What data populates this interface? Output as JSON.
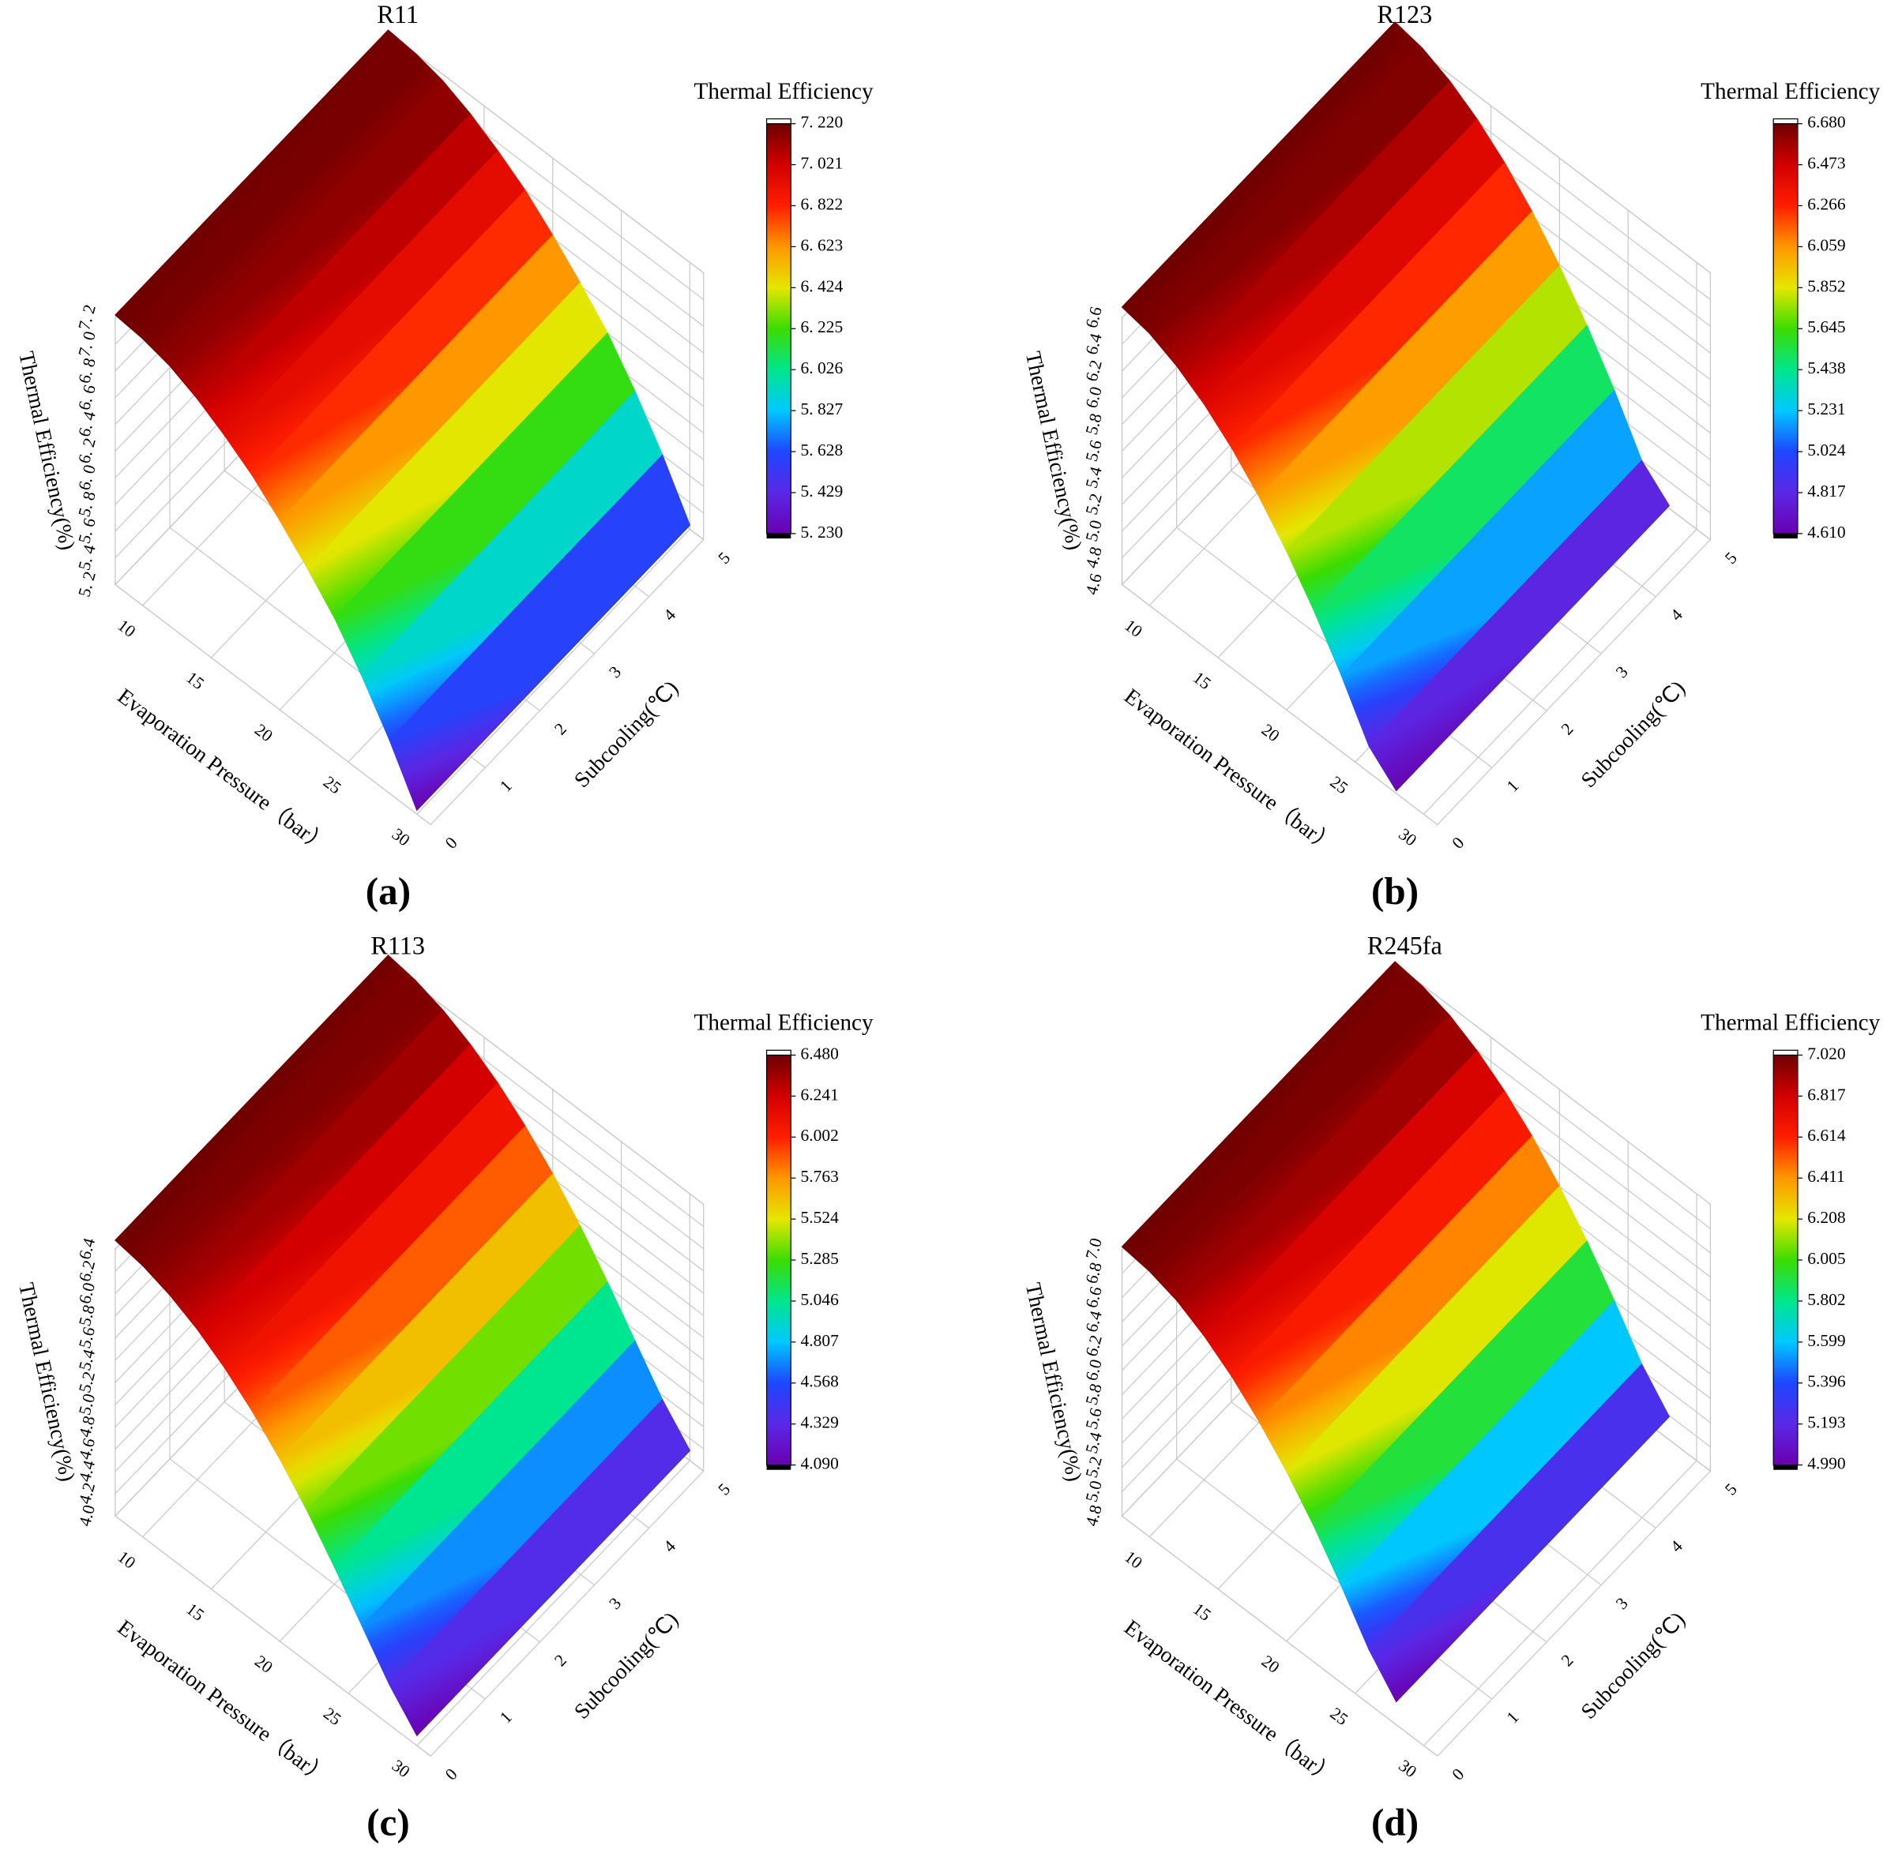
{
  "chart_data": [
    {
      "type": "surface3d",
      "title": "R11",
      "panel_label": "(a)",
      "x_label": "Evaporation Pressure（bar）",
      "y_label": "Subcooling(℃)",
      "z_label": "Thermal Efficiency(%)",
      "colorbar_title": "Thermal Efficiency",
      "x": [
        8,
        10,
        12,
        14,
        16,
        18,
        20,
        22,
        24,
        26,
        28,
        30
      ],
      "values": [
        7.22,
        7.2,
        7.15,
        7.06,
        6.94,
        6.8,
        6.62,
        6.42,
        6.2,
        5.92,
        5.6,
        5.23
      ],
      "xlim": [
        8,
        31
      ],
      "xticks": [
        10,
        15,
        20,
        25,
        30
      ],
      "ylim": [
        0,
        5
      ],
      "yticks": [
        0,
        1,
        2,
        3,
        4,
        5
      ],
      "zlim": [
        5.2,
        7.2
      ],
      "zticks": [
        {
          "value": 5.2,
          "label": "5. 2"
        },
        {
          "value": 5.4,
          "label": "5. 4"
        },
        {
          "value": 5.6,
          "label": "5. 6"
        },
        {
          "value": 5.8,
          "label": "5. 8"
        },
        {
          "value": 6.0,
          "label": "6. 0"
        },
        {
          "value": 6.2,
          "label": "6. 2"
        },
        {
          "value": 6.4,
          "label": "6. 4"
        },
        {
          "value": 6.6,
          "label": "6. 6"
        },
        {
          "value": 6.8,
          "label": "6. 8"
        },
        {
          "value": 7.0,
          "label": "7. 0"
        },
        {
          "value": 7.2,
          "label": "7. 2"
        }
      ],
      "clim": [
        5.23,
        7.22
      ],
      "cticks": [
        {
          "value": 5.23,
          "label": "5. 230"
        },
        {
          "value": 5.429,
          "label": "5. 429"
        },
        {
          "value": 5.628,
          "label": "5. 628"
        },
        {
          "value": 5.827,
          "label": "5. 827"
        },
        {
          "value": 6.026,
          "label": "6. 026"
        },
        {
          "value": 6.225,
          "label": "6. 225"
        },
        {
          "value": 6.424,
          "label": "6. 424"
        },
        {
          "value": 6.623,
          "label": "6. 623"
        },
        {
          "value": 6.822,
          "label": "6. 822"
        },
        {
          "value": 7.021,
          "label": "7. 021"
        },
        {
          "value": 7.22,
          "label": "7. 220"
        }
      ],
      "colorscale": [
        "#6a00b0",
        "#5a28e6",
        "#1e46ff",
        "#00c8ff",
        "#00e68c",
        "#3cdc00",
        "#e6e600",
        "#ff9600",
        "#ff1e00",
        "#d20000",
        "#6e0000"
      ]
    },
    {
      "type": "surface3d",
      "title": "R123",
      "panel_label": "(b)",
      "x_label": "Evaporation Pressure（bar）",
      "y_label": "Subcooling(℃)",
      "z_label": "Thermal Efficiency(%)",
      "colorbar_title": "Thermal Efficiency",
      "x": [
        8,
        10,
        12,
        14,
        16,
        18,
        20,
        22,
        24,
        26,
        28
      ],
      "values": [
        6.68,
        6.64,
        6.55,
        6.42,
        6.25,
        6.04,
        5.79,
        5.5,
        5.17,
        4.8,
        4.62
      ],
      "xlim": [
        8,
        31
      ],
      "xticks": [
        10,
        15,
        20,
        25,
        30
      ],
      "ylim": [
        0,
        5
      ],
      "yticks": [
        0,
        1,
        2,
        3,
        4,
        5
      ],
      "zlim": [
        4.6,
        6.6
      ],
      "zticks": [
        4.6,
        4.8,
        {
          "value": 5.0,
          "label": "5.0"
        },
        5.2,
        5.4,
        5.6,
        5.8,
        {
          "value": 6.0,
          "label": "6.0"
        },
        6.2,
        6.4,
        6.6
      ],
      "clim": [
        4.61,
        6.68
      ],
      "cticks": [
        {
          "value": 4.61,
          "label": "4.610"
        },
        4.817,
        5.024,
        5.231,
        5.438,
        5.645,
        5.852,
        6.059,
        6.266,
        6.473,
        {
          "value": 6.68,
          "label": "6.680"
        }
      ],
      "colorscale": [
        "#6a00b0",
        "#5a28e6",
        "#1e46ff",
        "#00c8ff",
        "#00e68c",
        "#3cdc00",
        "#e6e600",
        "#ff9600",
        "#ff1e00",
        "#d20000",
        "#6e0000"
      ]
    },
    {
      "type": "surface3d",
      "title": "R113",
      "panel_label": "(c)",
      "x_label": "Evaporation Pressure（bar）",
      "y_label": "Subcooling(℃)",
      "z_label": "Thermal Efficiency(%)",
      "colorbar_title": "Thermal Efficiency",
      "x": [
        8,
        10,
        12,
        14,
        16,
        18,
        20,
        22,
        24,
        26,
        28,
        30
      ],
      "values": [
        6.48,
        6.44,
        6.36,
        6.24,
        6.08,
        5.88,
        5.64,
        5.36,
        5.04,
        4.7,
        4.36,
        4.09
      ],
      "xlim": [
        8,
        31
      ],
      "xticks": [
        10,
        15,
        20,
        25,
        30
      ],
      "ylim": [
        0,
        5
      ],
      "yticks": [
        0,
        1,
        2,
        3,
        4,
        5
      ],
      "zlim": [
        4.0,
        6.4
      ],
      "zticks": [
        {
          "value": 4.0,
          "label": "4.0"
        },
        4.2,
        4.4,
        4.6,
        4.8,
        {
          "value": 5.0,
          "label": "5.0"
        },
        5.2,
        5.4,
        5.6,
        5.8,
        {
          "value": 6.0,
          "label": "6.0"
        },
        6.2,
        6.4
      ],
      "clim": [
        4.09,
        6.48
      ],
      "cticks": [
        {
          "value": 4.09,
          "label": "4.090"
        },
        4.329,
        4.568,
        4.807,
        5.046,
        5.285,
        5.524,
        5.763,
        6.002,
        6.241,
        {
          "value": 6.48,
          "label": "6.480"
        }
      ],
      "colorscale": [
        "#6a00b0",
        "#5a28e6",
        "#1e46ff",
        "#00c8ff",
        "#00e68c",
        "#3cdc00",
        "#e6e600",
        "#ff9600",
        "#ff1e00",
        "#d20000",
        "#6e0000"
      ]
    },
    {
      "type": "surface3d",
      "title": "R245fa",
      "panel_label": "(d)",
      "x_label": "Evaporation Pressure（bar）",
      "y_label": "Subcooling(℃)",
      "z_label": "Thermal Efficiency(%)",
      "colorbar_title": "Thermal Efficiency",
      "x": [
        8,
        10,
        12,
        14,
        16,
        18,
        20,
        22,
        24,
        26,
        28
      ],
      "values": [
        7.02,
        6.99,
        6.92,
        6.8,
        6.64,
        6.44,
        6.2,
        5.92,
        5.6,
        5.25,
        4.99
      ],
      "xlim": [
        8,
        31
      ],
      "xticks": [
        10,
        15,
        20,
        25,
        30
      ],
      "ylim": [
        0,
        5
      ],
      "yticks": [
        0,
        1,
        2,
        3,
        4,
        5
      ],
      "zlim": [
        4.8,
        7.0
      ],
      "zticks": [
        4.8,
        {
          "value": 5.0,
          "label": "5.0"
        },
        5.2,
        5.4,
        5.6,
        5.8,
        {
          "value": 6.0,
          "label": "6.0"
        },
        6.2,
        6.4,
        6.6,
        6.8,
        {
          "value": 7.0,
          "label": "7.0"
        }
      ],
      "clim": [
        4.99,
        7.02
      ],
      "cticks": [
        {
          "value": 4.99,
          "label": "4.990"
        },
        5.193,
        5.396,
        5.599,
        5.802,
        6.005,
        6.208,
        6.411,
        6.614,
        6.817,
        {
          "value": 7.02,
          "label": "7.020"
        }
      ],
      "colorscale": [
        "#6a00b0",
        "#5a28e6",
        "#1e46ff",
        "#00c8ff",
        "#00e68c",
        "#3cdc00",
        "#e6e600",
        "#ff9600",
        "#ff1e00",
        "#d20000",
        "#6e0000"
      ]
    }
  ]
}
